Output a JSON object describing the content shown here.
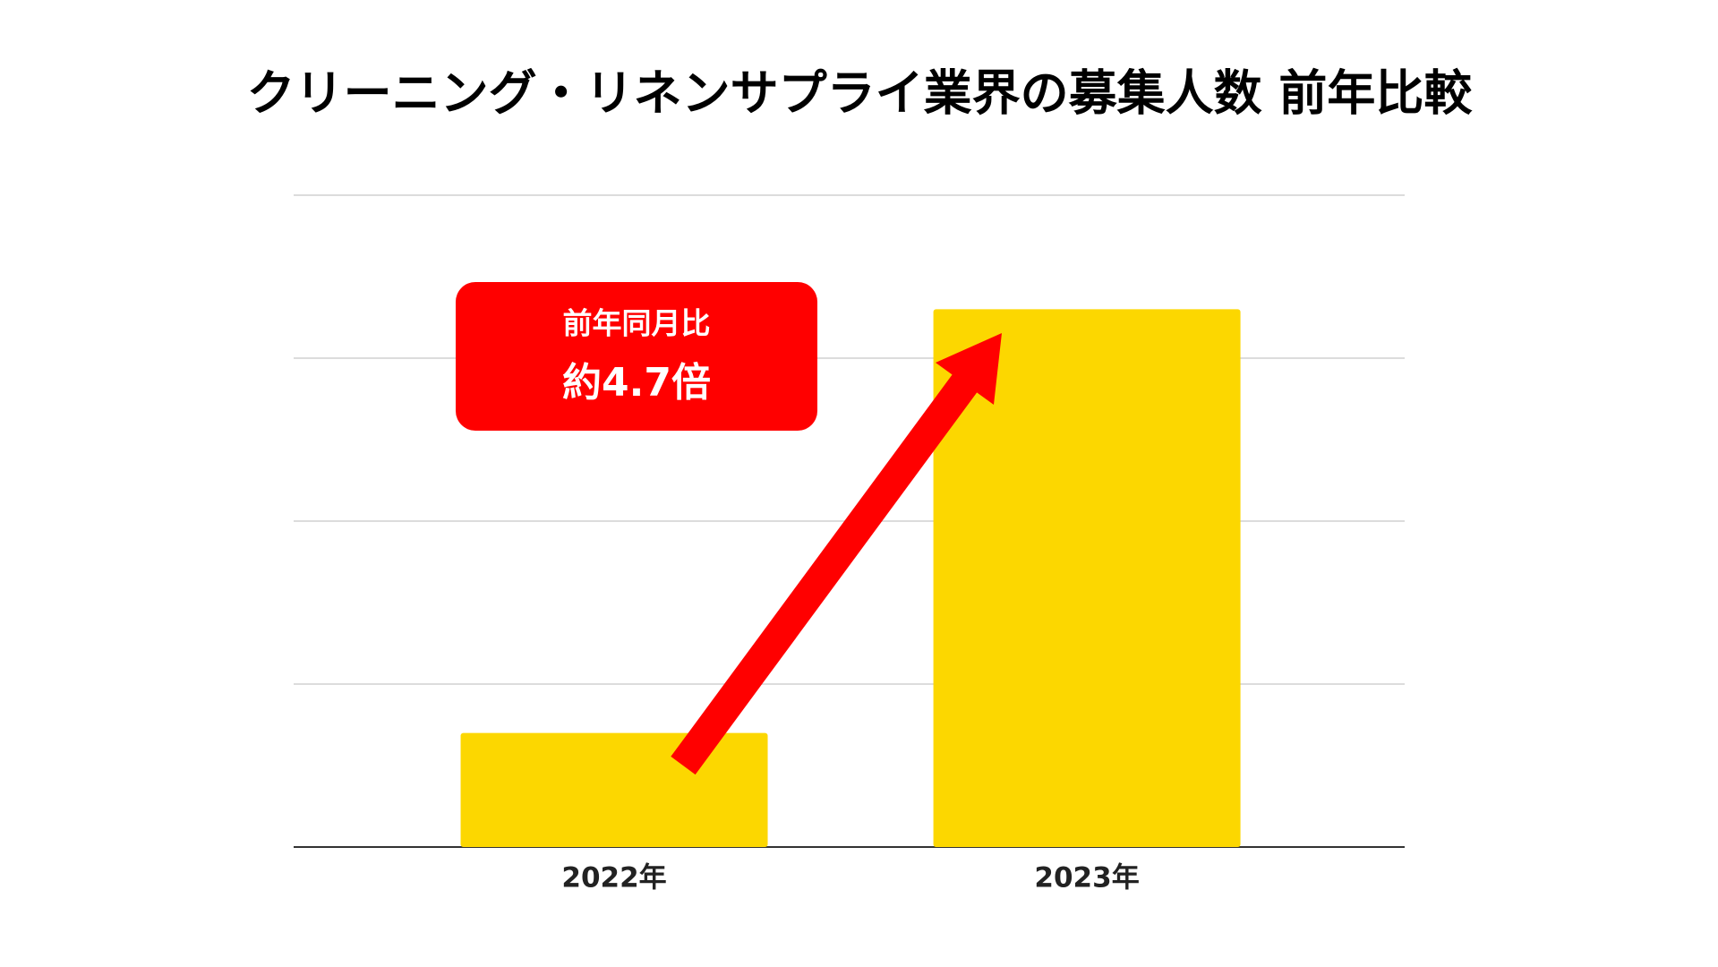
{
  "chart_data": {
    "type": "bar",
    "title": "クリーニング・リネンサプライ業界の募集人数 前年比較",
    "categories": [
      "2022年",
      "2023年"
    ],
    "values": [
      0.7,
      3.3
    ],
    "color": "#fcd700",
    "ylim": [
      0,
      4
    ],
    "yticks": [
      0,
      1,
      2,
      3,
      4
    ],
    "grid": true,
    "annotation": [
      "前年同月比",
      "約4.7倍"
    ],
    "annotation_color": "#ff0000"
  }
}
